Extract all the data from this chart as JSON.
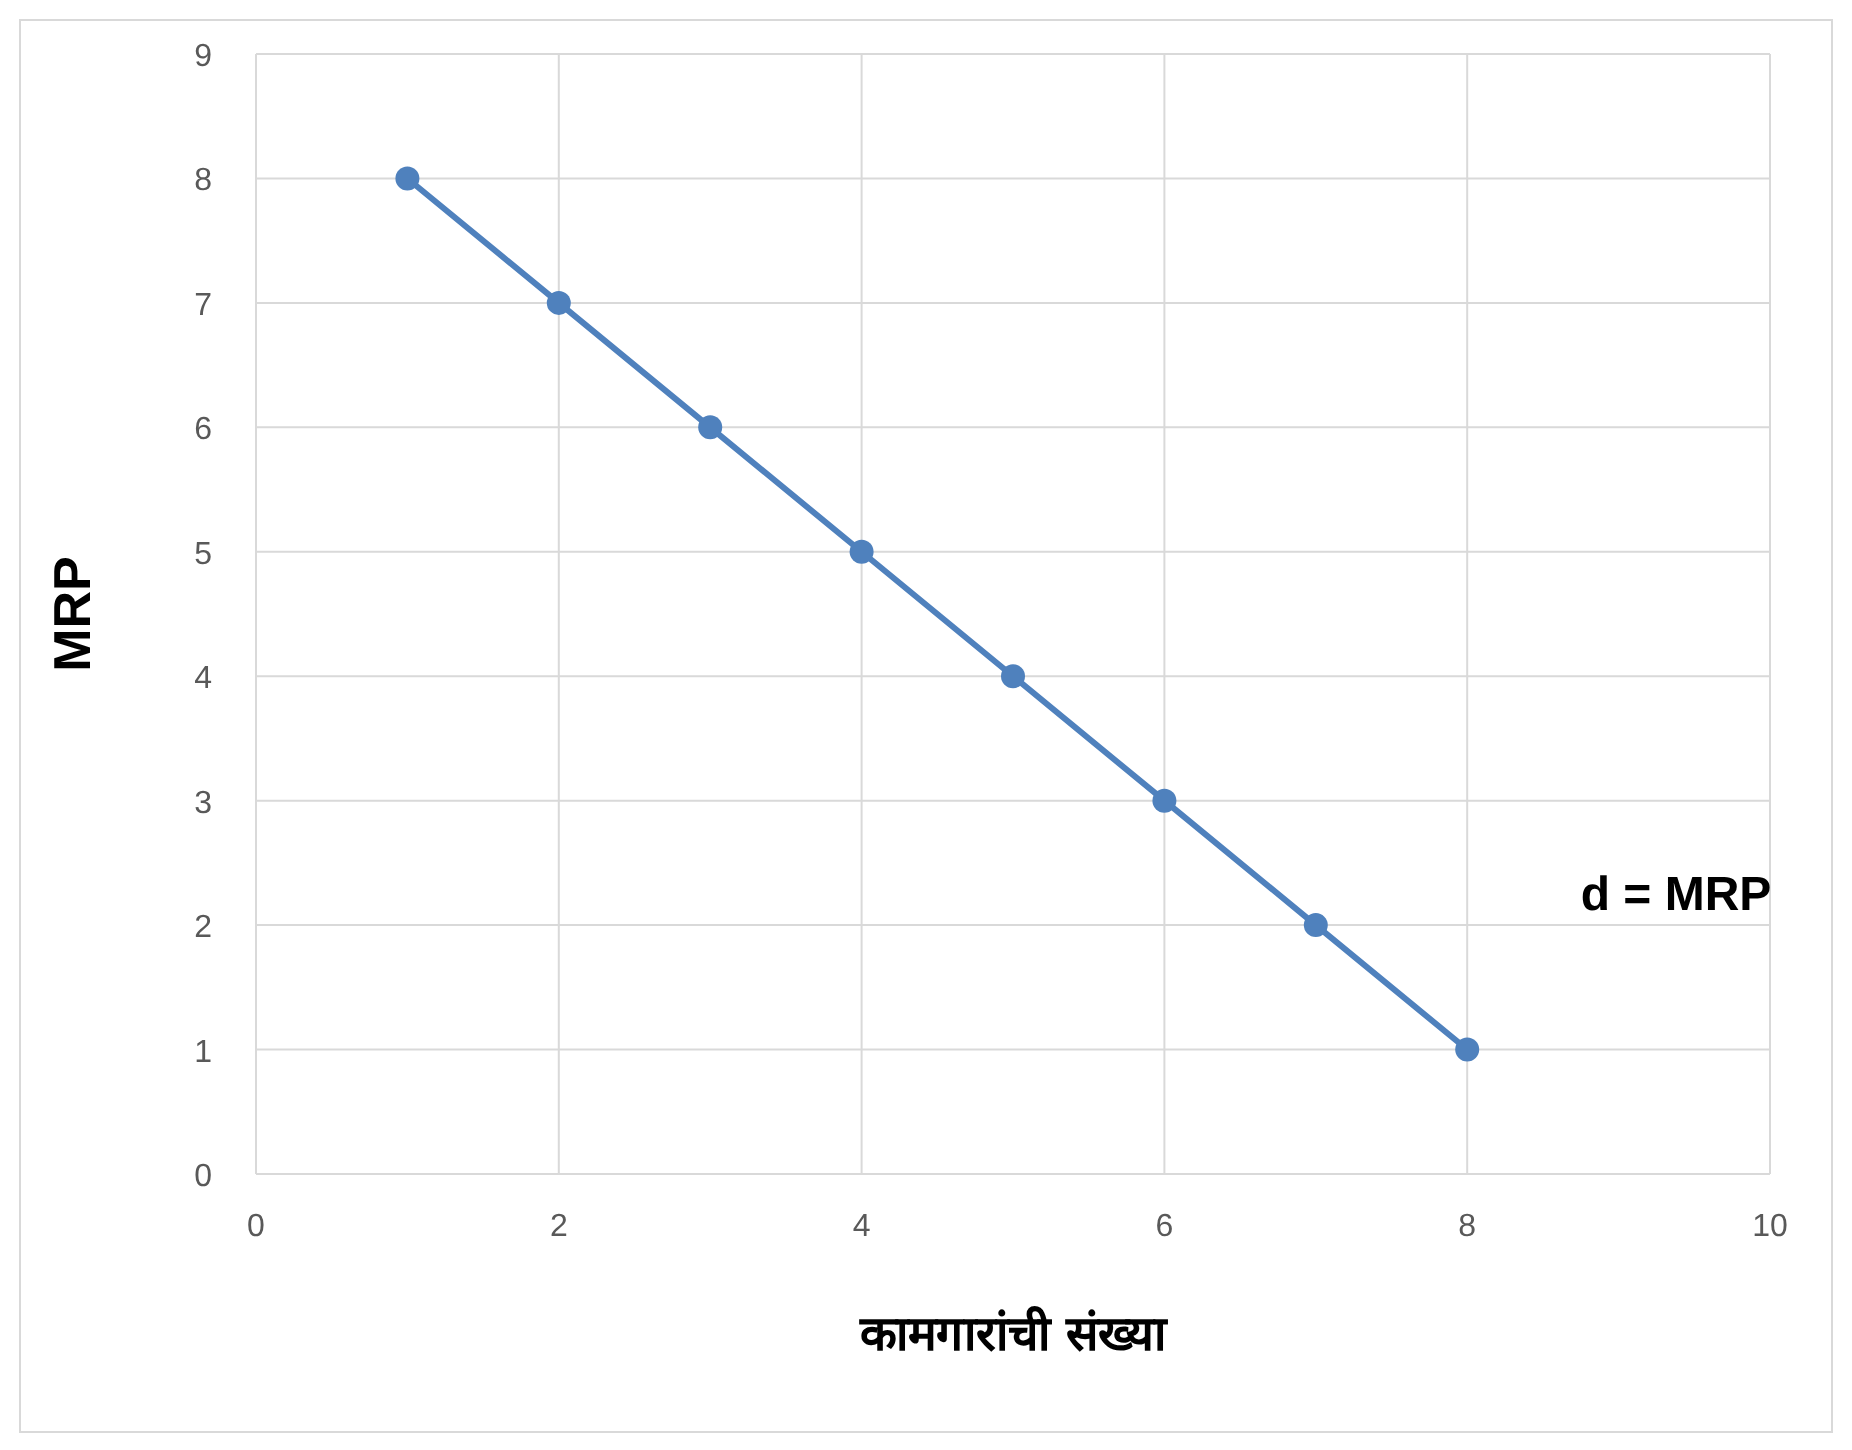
{
  "chart_data": {
    "type": "line",
    "xlabel": "कामगारांची संख्या",
    "ylabel": "MRP",
    "x": [
      1,
      2,
      3,
      4,
      5,
      6,
      7,
      8
    ],
    "series": [
      {
        "color": "#4f81bd",
        "values": [
          8,
          7,
          6,
          5,
          4,
          3,
          2,
          1
        ]
      }
    ],
    "xlim": [
      0,
      10
    ],
    "ylim": [
      0,
      9
    ],
    "xticks": [
      0,
      2,
      4,
      6,
      8,
      10
    ],
    "yticks": [
      0,
      1,
      2,
      3,
      4,
      5,
      6,
      7,
      8,
      9
    ],
    "grid": true,
    "marker": "circle",
    "line_style": "solid",
    "annotations": [
      "d = MRP"
    ]
  }
}
